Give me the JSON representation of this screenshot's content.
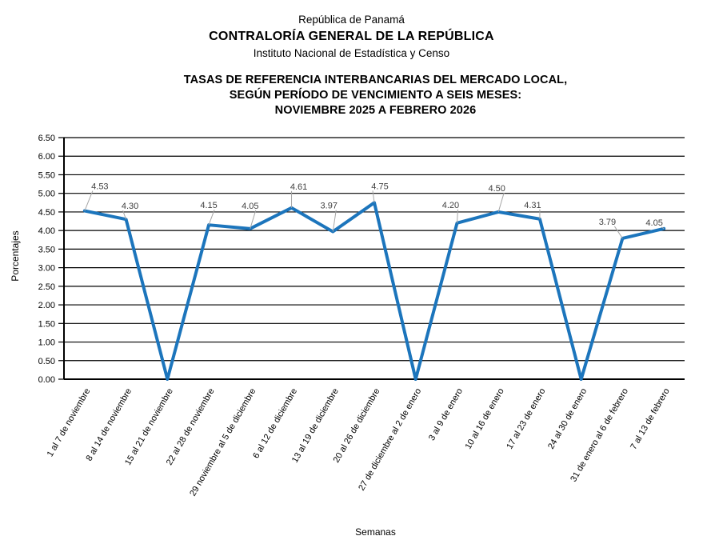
{
  "header": {
    "line1": "República de Panamá",
    "line2": "CONTRALORÍA GENERAL DE LA REPÚBLICA",
    "line3": "Instituto Nacional de Estadística y Censo"
  },
  "chart_title": {
    "line1": "TASAS DE REFERENCIA INTERBANCARIAS DEL MERCADO LOCAL,",
    "line2": "SEGÚN PERÍODO DE VENCIMIENTO A SEIS MESES:",
    "line3": "NOVIEMBRE 2025 A FEBRERO 2026"
  },
  "chart_data": {
    "type": "line",
    "title": "TASAS DE REFERENCIA INTERBANCARIAS DEL MERCADO LOCAL, SEGÚN PERÍODO DE VENCIMIENTO A SEIS MESES: NOVIEMBRE 2025 A FEBRERO 2026",
    "xlabel": "Semanas",
    "ylabel": "Porcentajes",
    "categories": [
      "1 al 7 de noviembre",
      "8 al 14 de noviembre",
      "15 al 21 de noviembre",
      "22 al 28 de noviembre",
      "29 noviembre al 5 de diciembre",
      "6 al 12 de diciembre",
      "13 al 19 de diciembre",
      "20 al 26 de diciembre",
      "27 de diciembre al 2 de enero",
      "3 al 9 de enero",
      "10 al 16 de enero",
      "17 al 23 de enero",
      "24 al 30 de enero",
      "31 de enero al 6 de febrero",
      "7 al 13 de febrero"
    ],
    "values": [
      4.53,
      4.3,
      0.0,
      4.15,
      4.05,
      4.61,
      3.97,
      4.75,
      0.0,
      4.2,
      4.5,
      4.31,
      0.0,
      3.79,
      4.05
    ],
    "data_labels": [
      "4.53",
      "4.30",
      "",
      "4.15",
      "4.05",
      "4.61",
      "3.97",
      "4.75",
      "",
      "4.20",
      "4.50",
      "4.31",
      "",
      "3.79",
      "4.05"
    ],
    "ylim": [
      0,
      6.5
    ],
    "ytick_step": 0.5,
    "ytick_labels": [
      "0.00",
      "0.50",
      "1.00",
      "1.50",
      "2.00",
      "2.50",
      "3.00",
      "3.50",
      "4.00",
      "4.50",
      "5.00",
      "5.50",
      "6.00",
      "6.50"
    ],
    "grid": true,
    "legend": false,
    "line_color": "#1C75BC",
    "axis_color": "#000000",
    "label_color": "#404040",
    "leader_color": "#A6A6A6",
    "label_offsets": {
      "0": [
        19,
        -27
      ],
      "1": [
        5,
        -13
      ],
      "3": [
        0,
        -21
      ],
      "4": [
        0,
        -25
      ],
      "5": [
        9,
        -23
      ],
      "6": [
        -5,
        -29
      ],
      "7": [
        7,
        -17
      ],
      "9": [
        -8,
        -19
      ],
      "10": [
        -2,
        -26
      ],
      "11": [
        -9,
        -14
      ],
      "13": [
        -19,
        -17
      ],
      "14": [
        -12,
        -4
      ]
    }
  }
}
